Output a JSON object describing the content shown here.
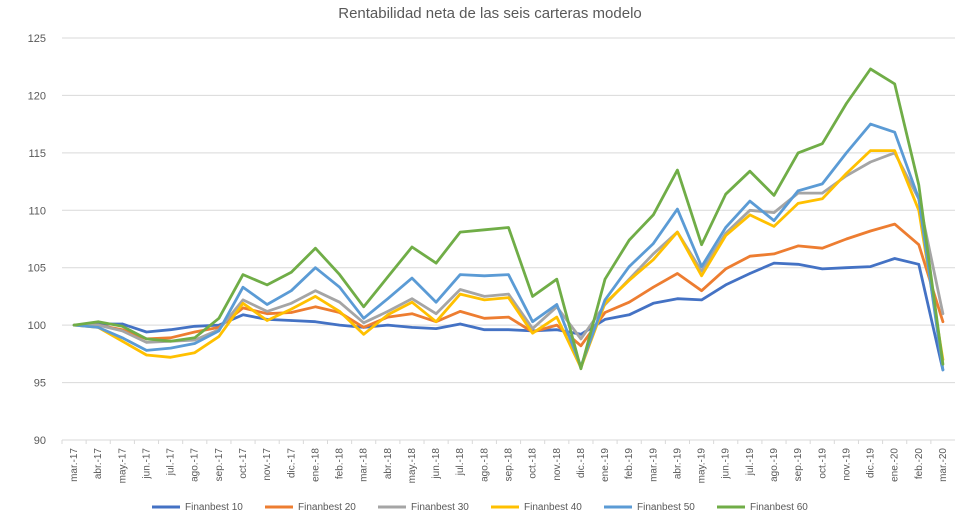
{
  "chart_data": {
    "type": "line",
    "title": "Rentabilidad neta de las seis carteras modelo",
    "xlabel": "",
    "ylabel": "",
    "ylim": [
      90,
      125
    ],
    "yticks": [
      90,
      95,
      100,
      105,
      110,
      115,
      120,
      125
    ],
    "grid": true,
    "legend_position": "bottom",
    "categories": [
      "mar.-17",
      "abr.-17",
      "may.-17",
      "jun.-17",
      "jul.-17",
      "ago.-17",
      "sep.-17",
      "oct.-17",
      "nov.-17",
      "dic.-17",
      "ene.-18",
      "feb.-18",
      "mar.-18",
      "abr.-18",
      "may.-18",
      "jun.-18",
      "jul.-18",
      "ago.-18",
      "sep.-18",
      "oct.-18",
      "nov.-18",
      "dic.-18",
      "ene.-19",
      "feb.-19",
      "mar.-19",
      "abr.-19",
      "may.-19",
      "jun.-19",
      "jul.-19",
      "ago.-19",
      "sep.-19",
      "oct.-19",
      "nov.-19",
      "dic.-19",
      "ene.-20",
      "feb.-20",
      "mar.-20"
    ],
    "series": [
      {
        "name": "Finanbest 10",
        "color": "#4472c4",
        "values": [
          100,
          100.1,
          100.1,
          99.4,
          99.6,
          99.9,
          100.0,
          100.9,
          100.5,
          100.4,
          100.3,
          100.0,
          99.8,
          100.0,
          99.8,
          99.7,
          100.1,
          99.6,
          99.6,
          99.5,
          99.6,
          99.2,
          100.5,
          100.9,
          101.9,
          102.3,
          102.2,
          103.5,
          104.5,
          105.4,
          105.3,
          104.9,
          105.0,
          105.1,
          105.8,
          105.3,
          96.1
        ]
      },
      {
        "name": "Finanbest 20",
        "color": "#ed7d31",
        "values": [
          100,
          100.0,
          99.6,
          98.8,
          98.9,
          99.4,
          99.8,
          101.5,
          101.0,
          101.1,
          101.6,
          101.1,
          99.8,
          100.7,
          101.0,
          100.3,
          101.2,
          100.6,
          100.7,
          99.4,
          100.0,
          98.2,
          101.1,
          102.0,
          103.3,
          104.5,
          103.0,
          104.9,
          106.0,
          106.2,
          106.9,
          106.7,
          107.5,
          108.2,
          108.8,
          107.0,
          100.3
        ]
      },
      {
        "name": "Finanbest 30",
        "color": "#a5a5a5",
        "values": [
          100,
          100.0,
          99.5,
          98.5,
          98.6,
          98.7,
          99.6,
          102.2,
          101.2,
          101.9,
          103.0,
          102.0,
          100.2,
          101.2,
          102.3,
          101.0,
          103.1,
          102.5,
          102.7,
          99.7,
          101.6,
          98.8,
          101.8,
          104.0,
          106.2,
          108.1,
          104.7,
          108.0,
          110.0,
          109.8,
          111.5,
          111.5,
          113.0,
          114.2,
          115.0,
          111.0,
          101.0
        ]
      },
      {
        "name": "Finanbest 40",
        "color": "#ffc000",
        "values": [
          100,
          99.8,
          98.6,
          97.4,
          97.2,
          97.6,
          99.0,
          101.9,
          100.4,
          101.4,
          102.5,
          101.2,
          99.2,
          100.9,
          102.0,
          100.3,
          102.7,
          102.2,
          102.4,
          99.3,
          100.7,
          96.3,
          101.9,
          103.9,
          105.7,
          108.1,
          104.3,
          107.8,
          109.6,
          108.6,
          110.6,
          111.0,
          113.2,
          115.2,
          115.2,
          110.0,
          97.0
        ]
      },
      {
        "name": "Finanbest 50",
        "color": "#5b9bd5",
        "values": [
          100,
          99.8,
          98.9,
          97.8,
          98.0,
          98.4,
          99.5,
          103.3,
          101.8,
          103.0,
          105.0,
          103.3,
          100.6,
          102.3,
          104.1,
          102.0,
          104.4,
          104.3,
          104.4,
          100.3,
          101.8,
          96.4,
          102.2,
          105.1,
          107.1,
          110.1,
          105.1,
          108.5,
          110.8,
          109.1,
          111.7,
          112.3,
          115.0,
          117.5,
          116.8,
          111.0,
          96.1
        ]
      },
      {
        "name": "Finanbest 60",
        "color": "#70ad47",
        "values": [
          100,
          100.3,
          99.9,
          98.8,
          98.6,
          98.9,
          100.6,
          104.4,
          103.5,
          104.6,
          106.7,
          104.4,
          101.6,
          104.2,
          106.8,
          105.4,
          108.1,
          108.3,
          108.5,
          102.5,
          104.0,
          96.2,
          104.0,
          107.4,
          109.6,
          113.5,
          107.0,
          111.4,
          113.4,
          111.3,
          115.0,
          115.8,
          119.3,
          122.3,
          121.0,
          112.2,
          96.6
        ]
      }
    ]
  }
}
